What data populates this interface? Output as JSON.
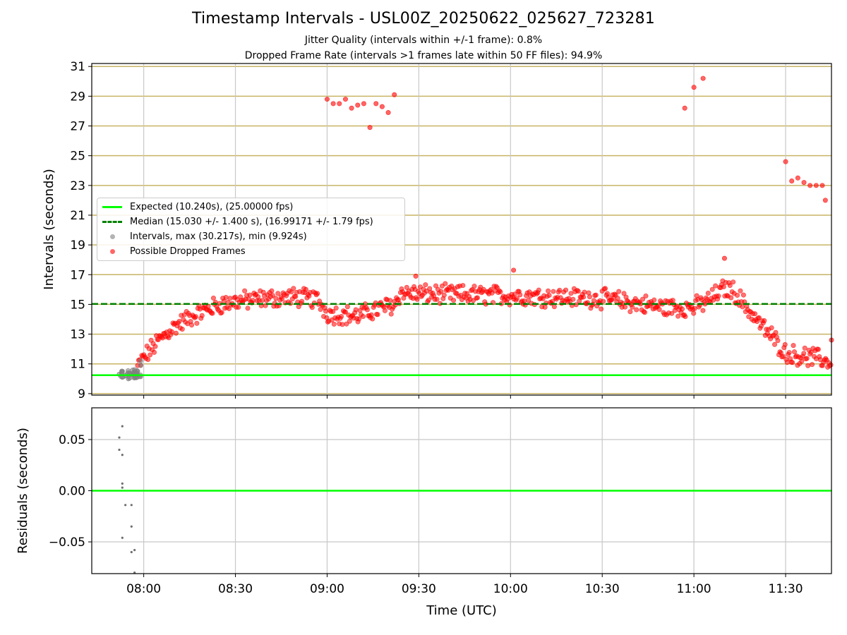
{
  "header": {
    "title": "Timestamp Intervals - USL00Z_20250622_025627_723281",
    "subtitle1": "Jitter Quality (intervals within +/-1 frame): 0.8%",
    "subtitle2": "Dropped Frame Rate (intervals >1 frames late within 50 FF files): 94.9%"
  },
  "colors": {
    "expected": "#00ff00",
    "median": "#008000",
    "intervals": "#808080",
    "dropped": "#ff0000",
    "grid_top": "#c8b464",
    "grid_bottom": "#c8c8c8"
  },
  "legend": {
    "expected": "Expected (10.240s), (25.00000 fps)",
    "median": "Median (15.030 +/- 1.400 s), (16.99171 +/- 1.79 fps)",
    "intervals": "Intervals, max (30.217s), min (9.924s)",
    "dropped": "Possible Dropped Frames"
  },
  "chart_data": [
    {
      "type": "scatter",
      "ylabel": "Intervals (seconds)",
      "ylim": [
        8.9,
        31.2
      ],
      "xlim": [
        "07:43",
        "11:45"
      ],
      "yticks": [
        9,
        11,
        13,
        15,
        17,
        19,
        21,
        23,
        25,
        27,
        29,
        31
      ],
      "grid": true,
      "legend_position": "upper-left",
      "reference_lines": [
        {
          "name": "Expected",
          "y": 10.24
        },
        {
          "name": "Median",
          "y": 15.03
        }
      ],
      "series": [
        {
          "name": "Intervals",
          "points": [
            [
              "07:52",
              10.3
            ],
            [
              "07:53",
              10.1
            ],
            [
              "07:53",
              10.5
            ],
            [
              "07:54",
              10.2
            ],
            [
              "07:55",
              10.4
            ],
            [
              "07:55",
              10.0
            ],
            [
              "07:56",
              10.3
            ],
            [
              "07:57",
              10.6
            ],
            [
              "07:57",
              10.2
            ],
            [
              "07:58",
              10.5
            ],
            [
              "07:59",
              10.9
            ],
            [
              "07:59",
              11.2
            ]
          ]
        },
        {
          "name": "Possible Dropped Frames",
          "trend": [
            [
              "07:58",
              10.8
            ],
            [
              "08:00",
              11.4
            ],
            [
              "08:05",
              12.6
            ],
            [
              "08:10",
              13.5
            ],
            [
              "08:15",
              14.1
            ],
            [
              "08:20",
              14.6
            ],
            [
              "08:25",
              15.0
            ],
            [
              "08:30",
              15.2
            ],
            [
              "08:40",
              15.4
            ],
            [
              "08:50",
              15.5
            ],
            [
              "08:57",
              15.3
            ],
            [
              "09:00",
              14.4
            ],
            [
              "09:10",
              14.2
            ],
            [
              "09:15",
              14.6
            ],
            [
              "09:22",
              15.0
            ],
            [
              "09:24",
              15.8
            ],
            [
              "09:30",
              15.7
            ],
            [
              "10:00",
              15.6
            ],
            [
              "10:30",
              15.4
            ],
            [
              "10:50",
              14.8
            ],
            [
              "11:00",
              14.8
            ],
            [
              "11:05",
              15.3
            ],
            [
              "11:10",
              16.1
            ],
            [
              "11:13",
              15.9
            ],
            [
              "11:18",
              14.6
            ],
            [
              "11:22",
              13.6
            ],
            [
              "11:27",
              12.5
            ],
            [
              "11:30",
              11.7
            ],
            [
              "11:36",
              11.5
            ],
            [
              "11:40",
              11.4
            ],
            [
              "11:45",
              11.1
            ]
          ],
          "outliers": [
            [
              "09:00",
              28.8
            ],
            [
              "09:02",
              28.5
            ],
            [
              "09:04",
              28.5
            ],
            [
              "09:06",
              28.8
            ],
            [
              "09:08",
              28.2
            ],
            [
              "09:10",
              28.4
            ],
            [
              "09:12",
              28.5
            ],
            [
              "09:14",
              26.9
            ],
            [
              "09:16",
              28.5
            ],
            [
              "09:18",
              28.3
            ],
            [
              "09:20",
              27.9
            ],
            [
              "09:22",
              29.1
            ],
            [
              "11:00",
              29.6
            ],
            [
              "11:03",
              30.2
            ],
            [
              "10:57",
              28.2
            ],
            [
              "11:30",
              24.6
            ],
            [
              "11:32",
              23.3
            ],
            [
              "11:34",
              23.5
            ],
            [
              "11:36",
              23.2
            ],
            [
              "11:38",
              23.0
            ],
            [
              "11:40",
              23.0
            ],
            [
              "11:42",
              23.0
            ],
            [
              "11:43",
              22.0
            ],
            [
              "10:01",
              17.3
            ],
            [
              "11:10",
              18.1
            ],
            [
              "09:29",
              16.9
            ],
            [
              "11:45",
              12.6
            ]
          ]
        }
      ]
    },
    {
      "type": "scatter",
      "xlabel": "Time (UTC)",
      "ylabel": "Residuals (seconds)",
      "ylim": [
        -0.081,
        0.081
      ],
      "yticks": [
        0.05,
        0.0,
        -0.05
      ],
      "ytick_labels": [
        "0.05",
        "0.00",
        "−0.05"
      ],
      "xticks": [
        "08:00",
        "08:30",
        "09:00",
        "09:30",
        "10:00",
        "10:30",
        "11:00",
        "11:30"
      ],
      "grid": true,
      "reference_lines": [
        {
          "name": "Expected",
          "y": 0.0
        }
      ],
      "series": [
        {
          "name": "Residuals",
          "points": [
            [
              "07:52",
              0.052
            ],
            [
              "07:52",
              0.04
            ],
            [
              "07:53",
              0.035
            ],
            [
              "07:53",
              0.063
            ],
            [
              "07:53",
              0.007
            ],
            [
              "07:53",
              0.003
            ],
            [
              "07:53",
              -0.046
            ],
            [
              "07:54",
              -0.014
            ],
            [
              "07:56",
              -0.014
            ],
            [
              "07:56",
              -0.035
            ],
            [
              "07:56",
              -0.06
            ],
            [
              "07:57",
              -0.058
            ],
            [
              "07:57",
              -0.08
            ]
          ]
        }
      ]
    }
  ]
}
